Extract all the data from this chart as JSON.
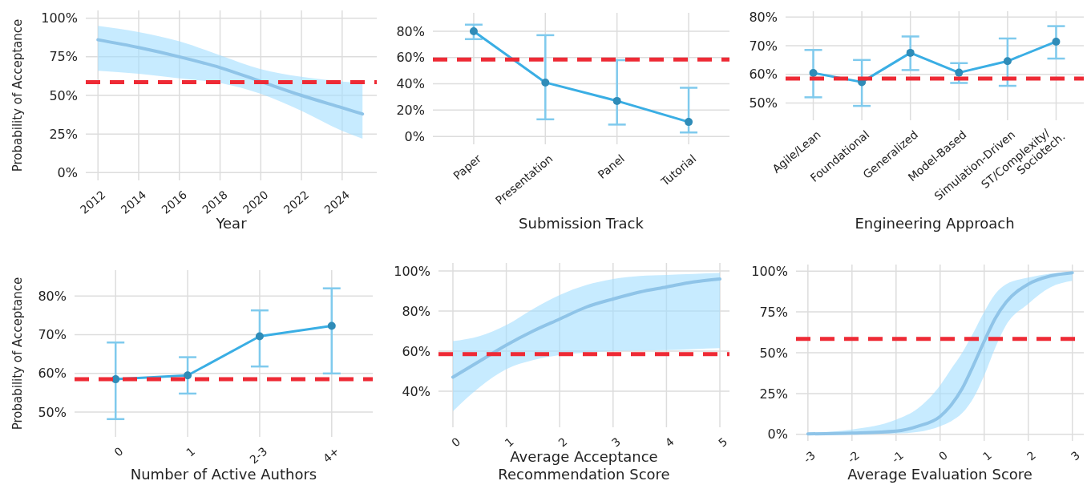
{
  "chart_data": [
    {
      "type": "line",
      "ylabel": "Probability of Acceptance",
      "xlabel": "Year",
      "x": [
        2012,
        2014,
        2016,
        2018,
        2020,
        2022,
        2024,
        2025
      ],
      "series": [
        {
          "color": "#8fc4e8",
          "values": [
            86,
            81,
            75,
            68,
            59,
            50,
            42,
            38
          ],
          "lower": [
            66,
            64,
            61,
            58,
            51,
            40,
            27,
            22
          ],
          "upper": [
            95,
            91,
            85,
            76,
            67,
            62,
            59,
            58
          ]
        }
      ],
      "xlim": [
        2011.4,
        2025.7
      ],
      "xticks": [
        2012,
        2014,
        2016,
        2018,
        2020,
        2022,
        2024
      ],
      "ylim": [
        -5,
        105
      ],
      "yticks": [
        {
          "value": 0,
          "label": "0%"
        },
        {
          "value": 25,
          "label": "25%"
        },
        {
          "value": 50,
          "label": "50%"
        },
        {
          "value": 75,
          "label": "75%"
        },
        {
          "value": 100,
          "label": "100%"
        }
      ],
      "ref_lines": [
        {
          "axis": "y",
          "value": 58.5,
          "color": "#ee2a35",
          "line_style": "dashed"
        }
      ],
      "grid": true,
      "marker": "none"
    },
    {
      "type": "line",
      "xlabel": "Submission Track",
      "categories": [
        "Paper",
        "Presentation",
        "Panel",
        "Tutorial"
      ],
      "values": [
        80,
        41,
        27,
        11
      ],
      "errors": [
        [
          74,
          85
        ],
        [
          13,
          77
        ],
        [
          9,
          58
        ],
        [
          3,
          37
        ]
      ],
      "color": "#3aaee4",
      "ylim": [
        -6,
        94
      ],
      "yticks": [
        {
          "value": 0,
          "label": "0%"
        },
        {
          "value": 20,
          "label": "20%"
        },
        {
          "value": 40,
          "label": "40%"
        },
        {
          "value": 60,
          "label": "60%"
        },
        {
          "value": 80,
          "label": "80%"
        }
      ],
      "ref_lines": [
        {
          "axis": "y",
          "value": 58.5,
          "color": "#ee2a35",
          "line_style": "dashed"
        }
      ],
      "grid": true,
      "marker": "circle"
    },
    {
      "type": "line",
      "xlabel": "Engineering Approach",
      "categories": [
        "Agile/Lean",
        "Foundational",
        "Generalized",
        "Model-Based",
        "Simulation-Driven",
        "ST/Complexity/ Sociotech."
      ],
      "values": [
        60.5,
        57.3,
        67.5,
        60.6,
        64.6,
        71.4
      ],
      "errors": [
        [
          52,
          68.5
        ],
        [
          49,
          65
        ],
        [
          61.5,
          73.2
        ],
        [
          57,
          63.9
        ],
        [
          56,
          72.5
        ],
        [
          65.5,
          76.8
        ]
      ],
      "color": "#3aaee4",
      "ylim": [
        44,
        82
      ],
      "yticks": [
        {
          "value": 50,
          "label": "50%"
        },
        {
          "value": 60,
          "label": "60%"
        },
        {
          "value": 70,
          "label": "70%"
        },
        {
          "value": 80,
          "label": "80%"
        }
      ],
      "ref_lines": [
        {
          "axis": "y",
          "value": 58.5,
          "color": "#ee2a35",
          "line_style": "dashed"
        }
      ],
      "grid": true,
      "marker": "circle"
    },
    {
      "type": "line",
      "ylabel": "Probability of Acceptance",
      "xlabel": "Number of Active Authors",
      "categories": [
        "0",
        "1",
        "2-3",
        "4+"
      ],
      "values": [
        58.5,
        59.5,
        69.6,
        72.3
      ],
      "errors": [
        [
          48.2,
          68
        ],
        [
          54.8,
          64.2
        ],
        [
          61.8,
          76.3
        ],
        [
          60,
          82
        ]
      ],
      "color": "#3aaee4",
      "ylim": [
        43.6,
        86.7
      ],
      "yticks": [
        {
          "value": 50,
          "label": "50%"
        },
        {
          "value": 60,
          "label": "60%"
        },
        {
          "value": 70,
          "label": "70%"
        },
        {
          "value": 80,
          "label": "80%"
        }
      ],
      "ref_lines": [
        {
          "axis": "y",
          "value": 58.5,
          "color": "#ee2a35",
          "line_style": "dashed"
        }
      ],
      "grid": true,
      "marker": "circle"
    },
    {
      "type": "line",
      "xlabel": "Average Acceptance Recommendation Score",
      "x": [
        0,
        0.5,
        1,
        1.5,
        2,
        2.5,
        3,
        3.5,
        4,
        4.5,
        5
      ],
      "series": [
        {
          "color": "#8fc4e8",
          "values": [
            47,
            55,
            63,
            70,
            76,
            82,
            86,
            89.5,
            92,
            94.5,
            96
          ],
          "lower": [
            30,
            42,
            51,
            55.5,
            58,
            59.3,
            60,
            60.3,
            60.5,
            61,
            61.5
          ],
          "upper": [
            65,
            67.5,
            73,
            81,
            88,
            93,
            96,
            97.5,
            98,
            98.5,
            99
          ]
        }
      ],
      "xlim": [
        -0.27,
        5.18
      ],
      "xticks": [
        0,
        1,
        2,
        3,
        4,
        5
      ],
      "ylim": [
        22,
        104
      ],
      "yticks": [
        {
          "value": 40,
          "label": "40%"
        },
        {
          "value": 60,
          "label": "60%"
        },
        {
          "value": 80,
          "label": "80%"
        },
        {
          "value": 100,
          "label": "100%"
        }
      ],
      "ref_lines": [
        {
          "axis": "y",
          "value": 58.5,
          "color": "#ee2a35",
          "line_style": "dashed"
        }
      ],
      "grid": true,
      "marker": "none"
    },
    {
      "type": "line",
      "xlabel": "Average Evaluation Score",
      "x": [
        -3,
        -2,
        -1,
        -0.5,
        0,
        0.25,
        0.5,
        0.75,
        1,
        1.25,
        1.5,
        2,
        2.5,
        3
      ],
      "series": [
        {
          "color": "#8fc4e8",
          "values": [
            0.3,
            0.8,
            2,
            5,
            11,
            18,
            28,
            42,
            57,
            71,
            81,
            92,
            97,
            99
          ],
          "lower": [
            0,
            0.2,
            0.5,
            1.5,
            5,
            8,
            13,
            22,
            36,
            53,
            67,
            80,
            90,
            94
          ],
          "upper": [
            1,
            3,
            9,
            16,
            30,
            40,
            50,
            62,
            75,
            86,
            92,
            96,
            98.5,
            99.5
          ]
        }
      ],
      "xlim": [
        -3.27,
        3.26
      ],
      "xticks": [
        -3,
        -2,
        -1,
        0,
        1,
        2,
        3
      ],
      "ylim": [
        -4,
        104
      ],
      "yticks": [
        {
          "value": 0,
          "label": "0%"
        },
        {
          "value": 25,
          "label": "25%"
        },
        {
          "value": 50,
          "label": "50%"
        },
        {
          "value": 75,
          "label": "75%"
        },
        {
          "value": 100,
          "label": "100%"
        }
      ],
      "ref_lines": [
        {
          "axis": "y",
          "value": 58.5,
          "color": "#ee2a35",
          "line_style": "dashed"
        }
      ],
      "grid": true,
      "marker": "none"
    }
  ]
}
